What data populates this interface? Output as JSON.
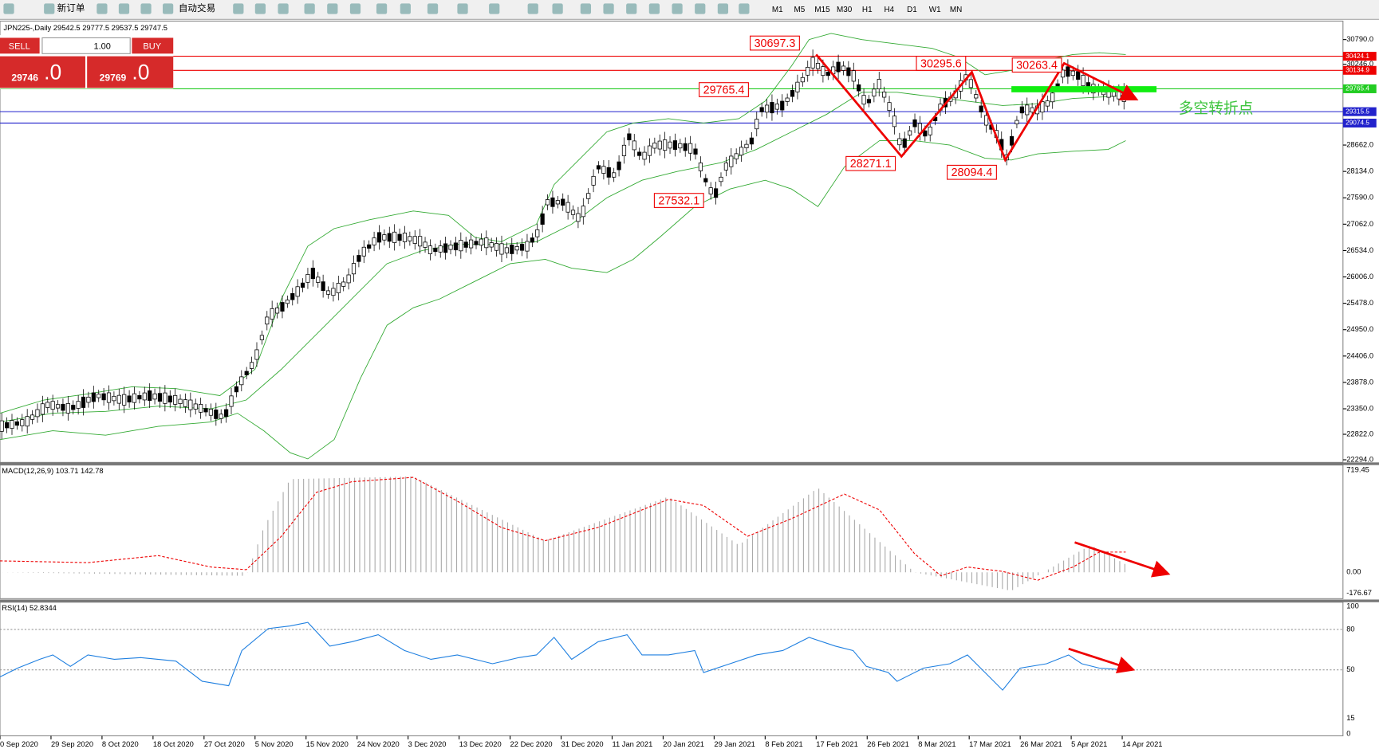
{
  "toolbar": {
    "buttons": [
      "新订单",
      "自动交易"
    ],
    "timeframes": [
      "M1",
      "M5",
      "M15",
      "M30",
      "H1",
      "H4",
      "D1",
      "W1",
      "MN"
    ]
  },
  "chart": {
    "symbol_info": "JPN225-,Daily 29542.5 29777.5 29537.5 29747.5",
    "price_axis": [
      "30790.0",
      "30246.0",
      "28662.0",
      "28134.0",
      "27590.0",
      "27062.0",
      "26534.0",
      "26006.0",
      "25478.0",
      "24950.0",
      "24406.0",
      "23878.0",
      "23350.0",
      "22822.0",
      "22294.0"
    ],
    "price_levels": [
      "30424.1",
      "30134.9",
      "29765.4",
      "29315.5",
      "29074.5"
    ],
    "annotations": [
      "30697.3",
      "30295.6",
      "30263.4",
      "29765.4",
      "28271.1",
      "28094.4",
      "27532.1"
    ],
    "note": "多空转折点",
    "dates": [
      "0 Sep 2020",
      "29 Sep 2020",
      "8 Oct 2020",
      "18 Oct 2020",
      "27 Oct 2020",
      "5 Nov 2020",
      "15 Nov 2020",
      "24 Nov 2020",
      "3 Dec 2020",
      "13 Dec 2020",
      "22 Dec 2020",
      "31 Dec 2020",
      "11 Jan 2021",
      "20 Jan 2021",
      "29 Jan 2021",
      "8 Feb 2021",
      "17 Feb 2021",
      "26 Feb 2021",
      "8 Mar 2021",
      "17 Mar 2021",
      "26 Mar 2021",
      "5 Apr 2021",
      "14 Apr 2021"
    ]
  },
  "trade_panel": {
    "sell": "SELL",
    "buy": "BUY",
    "volume": "1.00",
    "bid_big": "29746",
    "bid_small": ".0",
    "ask_big": "29769",
    "ask_small": ".0"
  },
  "macd": {
    "label": "MACD(12,26,9) 103.71 142.78",
    "axis": [
      "719.45",
      "0.00",
      "-176.67"
    ]
  },
  "rsi": {
    "label": "RSI(14) 52.8344",
    "axis": [
      "100",
      "80",
      "50",
      "15",
      "0"
    ]
  }
}
